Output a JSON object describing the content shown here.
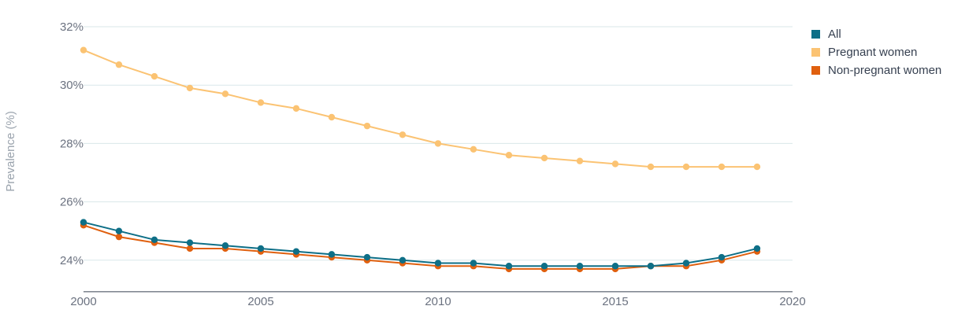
{
  "chart_data": {
    "type": "line",
    "ylabel": "Prevalence (%)",
    "xlabel": "",
    "xlim": [
      2000,
      2020
    ],
    "ylim": [
      23,
      32
    ],
    "x_ticks": [
      2000,
      2005,
      2010,
      2015,
      2020
    ],
    "x_tick_labels": [
      "2000",
      "2005",
      "2010",
      "2015",
      "2020"
    ],
    "y_ticks": [
      24,
      26,
      28,
      30,
      32
    ],
    "y_tick_labels": [
      "24%",
      "26%",
      "28%",
      "30%",
      "32%"
    ],
    "grid": "horizontal",
    "legend_position": "top-right",
    "x": [
      2000,
      2001,
      2002,
      2003,
      2004,
      2005,
      2006,
      2007,
      2008,
      2009,
      2010,
      2011,
      2012,
      2013,
      2014,
      2015,
      2016,
      2017,
      2018,
      2019
    ],
    "series": [
      {
        "name": "All",
        "color": "#0e6f87",
        "values": [
          25.3,
          25.0,
          24.7,
          24.6,
          24.5,
          24.4,
          24.3,
          24.2,
          24.1,
          24.0,
          23.9,
          23.9,
          23.8,
          23.8,
          23.8,
          23.8,
          23.8,
          23.9,
          24.1,
          24.4
        ]
      },
      {
        "name": "Pregnant women",
        "color": "#fbc373",
        "values": [
          31.2,
          30.7,
          30.3,
          29.9,
          29.7,
          29.4,
          29.2,
          28.9,
          28.6,
          28.3,
          28.0,
          27.8,
          27.6,
          27.5,
          27.4,
          27.3,
          27.2,
          27.2,
          27.2,
          27.2
        ]
      },
      {
        "name": "Non-pregnant women",
        "color": "#e0600f",
        "values": [
          25.2,
          24.8,
          24.6,
          24.4,
          24.4,
          24.3,
          24.2,
          24.1,
          24.0,
          23.9,
          23.8,
          23.8,
          23.7,
          23.7,
          23.7,
          23.7,
          23.8,
          23.8,
          24.0,
          24.3
        ]
      }
    ]
  }
}
